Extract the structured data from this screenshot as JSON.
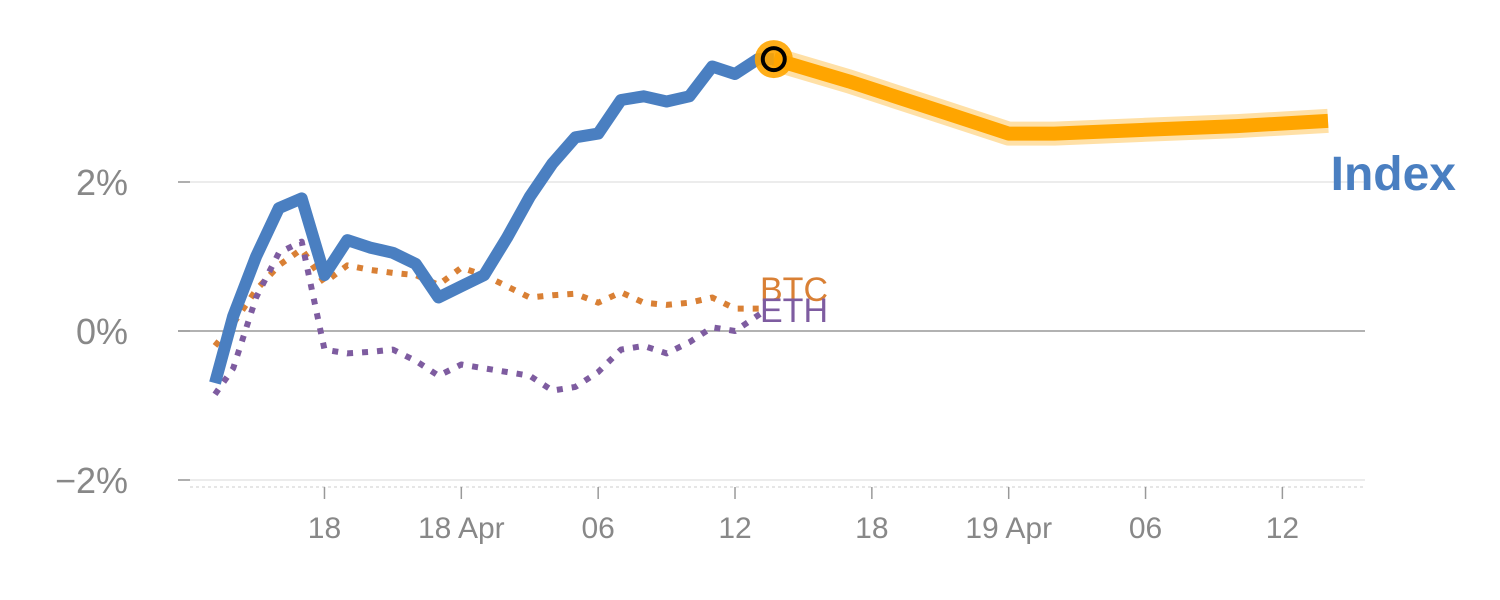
{
  "chart_data": {
    "type": "line",
    "title": "",
    "xlabel": "",
    "ylabel": "",
    "ylim": [
      -2.1,
      4.0
    ],
    "y_ticks": [
      -2,
      0,
      2
    ],
    "y_tick_labels": [
      "−2%",
      "0%",
      "2%"
    ],
    "x_ticks": [
      4,
      10,
      16,
      22,
      28,
      34,
      40,
      46
    ],
    "x_tick_labels": [
      "18",
      "18 Apr",
      "06",
      "12",
      "18",
      "19 Apr",
      "06",
      "12"
    ],
    "xlim": [
      -1.2,
      49
    ],
    "series": [
      {
        "name": "Index",
        "label": "Index",
        "color": "#4a7fc1",
        "style": "solid",
        "x": [
          -0.8,
          0,
          1,
          2,
          3,
          4,
          5,
          6,
          7,
          8,
          9,
          10,
          11,
          12,
          13,
          14,
          15,
          16,
          17,
          18,
          19,
          20,
          21,
          22,
          23,
          23.7
        ],
        "y": [
          -0.7,
          0.2,
          1.0,
          1.65,
          1.78,
          0.75,
          1.22,
          1.12,
          1.05,
          0.9,
          0.45,
          0.6,
          0.75,
          1.25,
          1.8,
          2.25,
          2.6,
          2.65,
          3.1,
          3.15,
          3.08,
          3.15,
          3.55,
          3.45,
          3.65,
          3.65
        ]
      },
      {
        "name": "Index projection",
        "color": "#ffa500",
        "style": "solid",
        "x": [
          23.7,
          27,
          31,
          34,
          36,
          40,
          44,
          48
        ],
        "y": [
          3.65,
          3.35,
          2.95,
          2.65,
          2.65,
          2.7,
          2.75,
          2.82
        ]
      },
      {
        "name": "BTC",
        "label": "BTC",
        "color": "#d98035",
        "style": "dotted",
        "x": [
          -0.8,
          0,
          1,
          2,
          3,
          4,
          5,
          6,
          7,
          8,
          9,
          10,
          11,
          12,
          13,
          14,
          15,
          16,
          17,
          18,
          19,
          20,
          21,
          22,
          23.2
        ],
        "y": [
          -0.2,
          0.1,
          0.55,
          0.88,
          1.1,
          0.65,
          0.88,
          0.82,
          0.78,
          0.75,
          0.62,
          0.85,
          0.75,
          0.6,
          0.45,
          0.48,
          0.5,
          0.38,
          0.52,
          0.38,
          0.35,
          0.38,
          0.45,
          0.3,
          0.3
        ]
      },
      {
        "name": "ETH",
        "label": "ETH",
        "color": "#7e5ca0",
        "style": "dotted",
        "x": [
          -0.8,
          0,
          1,
          2,
          3,
          4,
          5,
          6,
          7,
          8,
          9,
          10,
          11,
          12,
          13,
          14,
          15,
          16,
          17,
          18,
          19,
          20,
          21,
          22,
          23.2
        ],
        "y": [
          -0.85,
          -0.5,
          0.45,
          1.05,
          1.2,
          -0.25,
          -0.3,
          -0.28,
          -0.25,
          -0.4,
          -0.6,
          -0.45,
          -0.5,
          -0.55,
          -0.6,
          -0.8,
          -0.75,
          -0.55,
          -0.25,
          -0.2,
          -0.3,
          -0.15,
          0.05,
          0.0,
          0.25
        ]
      }
    ],
    "highlight_point": {
      "series": "Index",
      "x": 23.7,
      "y": 3.65
    }
  }
}
